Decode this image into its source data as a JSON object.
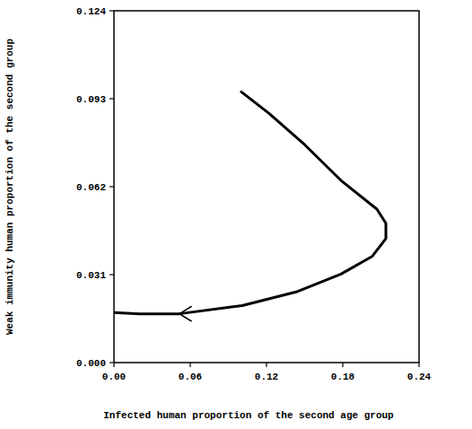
{
  "chart_data": {
    "type": "line",
    "x_label": "Infected human proportion of the second age group",
    "y_label": "Weak immunity human proportion of the second group",
    "x": [
      0.1002,
      0.122,
      0.15,
      0.1786,
      0.2068,
      0.2139,
      0.2139,
      0.2033,
      0.1786,
      0.1433,
      0.1009,
      0.0515,
      0.02,
      0.0
    ],
    "values": [
      0.0954,
      0.0878,
      0.0768,
      0.0642,
      0.0541,
      0.0491,
      0.0437,
      0.0375,
      0.0312,
      0.0249,
      0.0201,
      0.0172,
      0.0172,
      0.0176
    ],
    "color": "#000000",
    "xlim": [
      0,
      0.24
    ],
    "ylim": [
      0,
      0.124
    ],
    "xticks": [
      {
        "value": 0,
        "label": "0.00"
      },
      {
        "value": 0.06,
        "label": "0.06"
      },
      {
        "value": 0.12,
        "label": "0.12"
      },
      {
        "value": 0.18,
        "label": "0.18"
      },
      {
        "value": 0.24,
        "label": "0.24"
      }
    ],
    "yticks": [
      {
        "value": 0,
        "label": "0.000"
      },
      {
        "value": 0.031,
        "label": "0.031"
      },
      {
        "value": 0.062,
        "label": "0.062"
      },
      {
        "value": 0.093,
        "label": "0.093"
      },
      {
        "value": 0.124,
        "label": "0.124"
      }
    ],
    "grid": false
  }
}
